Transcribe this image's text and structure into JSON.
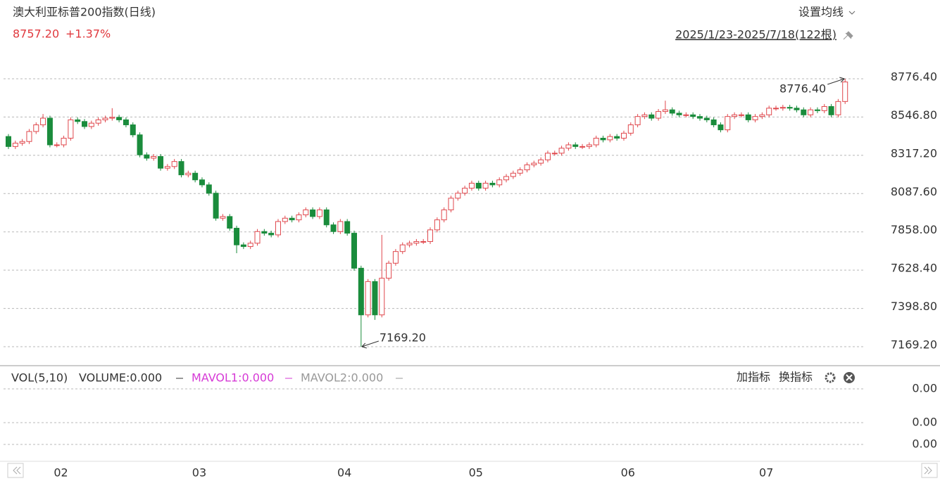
{
  "header": {
    "title": "澳大利亚标普200指数(日线)",
    "price": "8757.20",
    "change": "+1.37%",
    "ma_setting": "设置均线",
    "range": "2025/1/23-2025/7/18(122根)"
  },
  "chart_data": {
    "type": "candlestick",
    "categories": [
      null,
      null,
      null,
      null,
      null,
      null,
      null,
      null,
      "02",
      null,
      null,
      null,
      null,
      null,
      null,
      null,
      null,
      null,
      null,
      null,
      null,
      null,
      null,
      null,
      null,
      null,
      null,
      null,
      "03",
      null,
      null,
      null,
      null,
      null,
      null,
      null,
      null,
      null,
      null,
      null,
      null,
      null,
      null,
      null,
      null,
      null,
      null,
      null,
      null,
      "04",
      null,
      null,
      null,
      null,
      null,
      null,
      null,
      null,
      null,
      null,
      null,
      null,
      null,
      null,
      null,
      null,
      null,
      null,
      "05",
      null,
      null,
      null,
      null,
      null,
      null,
      null,
      null,
      null,
      null,
      null,
      null,
      null,
      null,
      null,
      null,
      null,
      null,
      null,
      null,
      null,
      "06",
      null,
      null,
      null,
      null,
      null,
      null,
      null,
      null,
      null,
      null,
      null,
      null,
      null,
      null,
      null,
      null,
      null,
      null,
      null,
      "07",
      null,
      null,
      null,
      null,
      null,
      null,
      null,
      null,
      null,
      null,
      null
    ],
    "open": [
      8430,
      8370,
      8390,
      8400,
      8460,
      8500,
      8540,
      8380,
      8380,
      8420,
      8530,
      8520,
      8490,
      8510,
      8530,
      8540,
      8545,
      8530,
      8500,
      8440,
      8320,
      8300,
      8310,
      8240,
      8250,
      8280,
      8200,
      8210,
      8170,
      8140,
      8090,
      7940,
      7950,
      7880,
      7780,
      7770,
      7790,
      7860,
      7850,
      7840,
      7920,
      7940,
      7930,
      7960,
      7990,
      7950,
      7990,
      7900,
      7860,
      7920,
      7850,
      7640,
      7360,
      7560,
      7360,
      7580,
      7670,
      7740,
      7780,
      7790,
      7800,
      7800,
      7870,
      7930,
      7990,
      8060,
      8090,
      8120,
      8150,
      8120,
      8150,
      8140,
      8170,
      8190,
      8210,
      8230,
      8260,
      8270,
      8290,
      8330,
      8330,
      8360,
      8380,
      8370,
      8370,
      8380,
      8420,
      8410,
      8430,
      8420,
      8450,
      8500,
      8550,
      8560,
      8540,
      8580,
      8590,
      8570,
      8560,
      8560,
      8550,
      8540,
      8530,
      8500,
      8470,
      8550,
      8560,
      8560,
      8530,
      8550,
      8560,
      8600,
      8600,
      8605,
      8600,
      8590,
      8560,
      8590,
      8585,
      8610,
      8560,
      8640
    ],
    "high": [
      8445,
      8405,
      8415,
      8475,
      8515,
      8565,
      8555,
      8395,
      8435,
      8545,
      8545,
      8535,
      8525,
      8545,
      8555,
      8600,
      8560,
      8545,
      8515,
      8455,
      8335,
      8325,
      8325,
      8265,
      8295,
      8295,
      8225,
      8225,
      8185,
      8155,
      8105,
      7965,
      7965,
      7895,
      7795,
      7805,
      7875,
      7875,
      7865,
      7935,
      7955,
      7955,
      7975,
      8005,
      8005,
      8005,
      8005,
      7915,
      7935,
      7935,
      7865,
      7655,
      7575,
      7575,
      7840,
      7685,
      7755,
      7795,
      7805,
      7815,
      7815,
      7885,
      7945,
      8005,
      8075,
      8105,
      8135,
      8165,
      8165,
      8165,
      8165,
      8185,
      8205,
      8225,
      8245,
      8275,
      8285,
      8305,
      8345,
      8345,
      8375,
      8395,
      8395,
      8385,
      8395,
      8435,
      8435,
      8445,
      8445,
      8465,
      8515,
      8565,
      8575,
      8575,
      8595,
      8645,
      8605,
      8585,
      8575,
      8575,
      8565,
      8555,
      8545,
      8515,
      8565,
      8575,
      8575,
      8575,
      8565,
      8575,
      8615,
      8615,
      8620,
      8620,
      8615,
      8605,
      8605,
      8605,
      8625,
      8625,
      8655,
      8776.4
    ],
    "low": [
      8355,
      8355,
      8375,
      8385,
      8445,
      8485,
      8365,
      8365,
      8365,
      8405,
      8505,
      8475,
      8475,
      8495,
      8515,
      8525,
      8515,
      8485,
      8425,
      8305,
      8285,
      8285,
      8225,
      8225,
      8235,
      8185,
      8185,
      8155,
      8125,
      8075,
      7925,
      7925,
      7865,
      7730,
      7755,
      7755,
      7775,
      7835,
      7825,
      7825,
      7905,
      7915,
      7915,
      7945,
      7935,
      7935,
      7885,
      7845,
      7845,
      7835,
      7625,
      7169.2,
      7345,
      7330,
      7345,
      7565,
      7655,
      7725,
      7765,
      7775,
      7785,
      7785,
      7855,
      7915,
      7975,
      8045,
      8075,
      8105,
      8105,
      8105,
      8125,
      8125,
      8155,
      8175,
      8195,
      8215,
      8245,
      8255,
      8275,
      8315,
      8315,
      8345,
      8355,
      8355,
      8355,
      8365,
      8395,
      8395,
      8405,
      8405,
      8435,
      8485,
      8535,
      8525,
      8525,
      8565,
      8555,
      8545,
      8545,
      8535,
      8525,
      8515,
      8485,
      8455,
      8455,
      8535,
      8545,
      8515,
      8515,
      8535,
      8545,
      8585,
      8585,
      8585,
      8575,
      8545,
      8545,
      8570,
      8570,
      8545,
      8545,
      8625
    ],
    "close": [
      8370,
      8390,
      8400,
      8460,
      8500,
      8540,
      8380,
      8380,
      8420,
      8530,
      8520,
      8490,
      8510,
      8530,
      8540,
      8545,
      8530,
      8500,
      8440,
      8320,
      8300,
      8310,
      8240,
      8250,
      8280,
      8200,
      8210,
      8170,
      8140,
      8090,
      7940,
      7950,
      7880,
      7780,
      7770,
      7790,
      7860,
      7850,
      7840,
      7920,
      7940,
      7930,
      7960,
      7990,
      7950,
      7990,
      7900,
      7860,
      7920,
      7850,
      7640,
      7360,
      7560,
      7360,
      7580,
      7670,
      7740,
      7780,
      7790,
      7800,
      7800,
      7870,
      7930,
      7990,
      8060,
      8090,
      8120,
      8150,
      8120,
      8150,
      8140,
      8170,
      8190,
      8210,
      8230,
      8260,
      8270,
      8290,
      8330,
      8330,
      8360,
      8380,
      8370,
      8370,
      8380,
      8420,
      8410,
      8430,
      8420,
      8450,
      8500,
      8550,
      8560,
      8540,
      8580,
      8590,
      8570,
      8560,
      8560,
      8550,
      8540,
      8530,
      8500,
      8470,
      8550,
      8560,
      8560,
      8530,
      8550,
      8560,
      8600,
      8600,
      8605,
      8600,
      8590,
      8560,
      8590,
      8585,
      8610,
      8560,
      8640,
      8757.2
    ],
    "up_color": "#e0474c",
    "down_color": "#1a8c3c",
    "ylim": [
      7063.7,
      8839.7
    ],
    "yticks": [
      {
        "value": 8776.4,
        "label": "8776.40"
      },
      {
        "value": 8546.8,
        "label": "8546.80"
      },
      {
        "value": 8317.2,
        "label": "8317.20"
      },
      {
        "value": 8087.6,
        "label": "8087.60"
      },
      {
        "value": 7858,
        "label": "7858.00"
      },
      {
        "value": 7628.4,
        "label": "7628.40"
      },
      {
        "value": 7398.8,
        "label": "7398.80"
      },
      {
        "value": 7169.2,
        "label": "7169.20"
      }
    ],
    "grid": true,
    "max_label": "8776.40",
    "min_label": "7169.20"
  },
  "volume_panel": {
    "label": "VOL(5,10)",
    "volume": "VOLUME:0.000",
    "mavol1": "MAVOL1:0.000",
    "mavol2": "MAVOL2:0.000",
    "add": "加指标",
    "switch": "换指标",
    "tick_labels": [
      "0.00",
      "0.00",
      "0.00"
    ]
  }
}
